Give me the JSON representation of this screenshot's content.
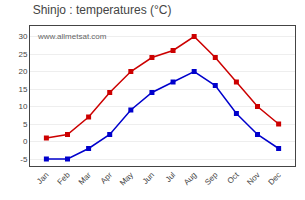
{
  "chart_data": {
    "type": "line",
    "title": "Shinjo : temperatures (°C)",
    "categories": [
      "Jan",
      "Feb",
      "Mar",
      "Apr",
      "May",
      "Jun",
      "Jul",
      "Aug",
      "Sep",
      "Oct",
      "Nov",
      "Dec"
    ],
    "series": [
      {
        "color": "#cc0000",
        "marker": "square",
        "values": [
          1,
          2,
          7,
          14,
          20,
          24,
          26,
          30,
          24,
          17,
          10,
          5
        ]
      },
      {
        "color": "#0000cc",
        "marker": "square",
        "values": [
          -5,
          -5,
          -2,
          2,
          9,
          14,
          17,
          20,
          16,
          8,
          2,
          -2
        ]
      }
    ],
    "ylim": [
      -7,
      33
    ],
    "yticks": [
      -5,
      0,
      5,
      10,
      15,
      20,
      25,
      30
    ],
    "grid": true,
    "annotations": [
      "www.allmetsat.com"
    ]
  }
}
